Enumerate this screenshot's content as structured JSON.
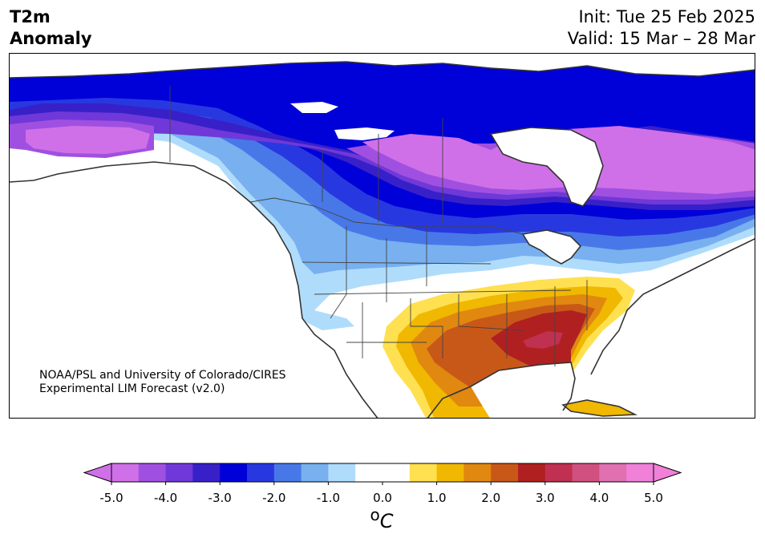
{
  "title": {
    "line1": "T2m",
    "line2": "Anomaly"
  },
  "header_right": {
    "init": "Init: Tue 25 Feb 2025",
    "valid": "Valid: 15 Mar – 28 Mar"
  },
  "credit": {
    "line1": "NOAA/PSL and University of Colorado/CIRES",
    "line2": "Experimental LIM Forecast (v2.0)"
  },
  "colorbar": {
    "unit_sup": "o",
    "unit_main": "C",
    "tick_labels": [
      "-5.0",
      "-4.0",
      "-3.0",
      "-2.0",
      "-1.0",
      "0.0",
      "1.0",
      "2.0",
      "3.0",
      "4.0",
      "5.0"
    ],
    "colors": [
      "#d070e8",
      "#a050e0",
      "#7038d8",
      "#3820c8",
      "#0000d8",
      "#2838e0",
      "#4878e8",
      "#78b0f0",
      "#b0dcfc",
      "#ffffff",
      "#ffffff",
      "#ffe050",
      "#f0b800",
      "#e08810",
      "#c85818",
      "#b02020",
      "#c03050",
      "#d05080",
      "#e070b0",
      "#f080d8"
    ],
    "extend_low_color": "#d070e8",
    "extend_high_color": "#f080d8"
  },
  "map": {
    "ocean_color": "#ffffff",
    "land_neutral": "#ffffff",
    "lake_color": "#ffffff"
  }
}
